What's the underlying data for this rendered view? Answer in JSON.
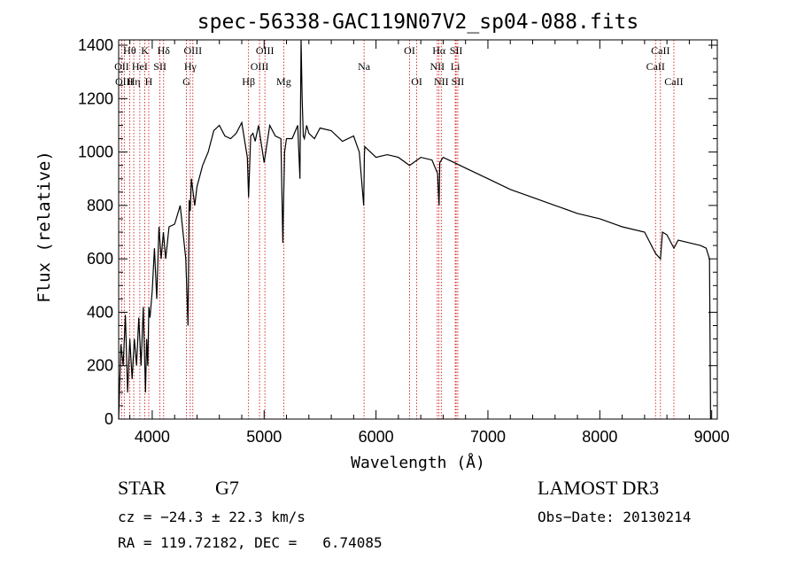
{
  "chart_data": {
    "type": "line",
    "title": "spec-56338-GAC119N07V2_sp04-088.fits",
    "xlabel": "Wavelength (Å)",
    "ylabel": "Flux (relative)",
    "xlim": [
      3700,
      9050
    ],
    "ylim": [
      0,
      1420
    ],
    "xticks": [
      4000,
      5000,
      6000,
      7000,
      8000,
      9000
    ],
    "yticks": [
      0,
      200,
      400,
      600,
      800,
      1000,
      1200,
      1400
    ],
    "grid": false,
    "series": [
      {
        "name": "spectrum",
        "x": [
          3700,
          3720,
          3740,
          3760,
          3780,
          3800,
          3820,
          3840,
          3860,
          3880,
          3900,
          3920,
          3940,
          3950,
          3960,
          3970,
          3980,
          4000,
          4020,
          4040,
          4060,
          4080,
          4100,
          4120,
          4150,
          4200,
          4250,
          4300,
          4320,
          4330,
          4340,
          4350,
          4380,
          4400,
          4450,
          4500,
          4550,
          4600,
          4650,
          4700,
          4750,
          4800,
          4850,
          4861,
          4880,
          4900,
          4920,
          4950,
          5000,
          5050,
          5100,
          5150,
          5167,
          5172,
          5183,
          5200,
          5250,
          5300,
          5320,
          5330,
          5340,
          5350,
          5360,
          5380,
          5400,
          5450,
          5500,
          5600,
          5700,
          5800,
          5850,
          5890,
          5896,
          5900,
          5950,
          6000,
          6100,
          6200,
          6300,
          6400,
          6500,
          6550,
          6563,
          6570,
          6600,
          6700,
          6800,
          6900,
          7000,
          7200,
          7400,
          7600,
          7800,
          8000,
          8200,
          8400,
          8498,
          8542,
          8560,
          8600,
          8662,
          8700,
          8800,
          8900,
          8950,
          8980,
          8990
        ],
        "values": [
          0,
          280,
          200,
          390,
          100,
          300,
          150,
          300,
          200,
          380,
          200,
          420,
          100,
          300,
          200,
          420,
          380,
          480,
          640,
          450,
          720,
          600,
          700,
          600,
          720,
          730,
          800,
          600,
          350,
          820,
          780,
          900,
          800,
          870,
          950,
          1000,
          1080,
          1100,
          1060,
          1050,
          1070,
          1110,
          980,
          830,
          1060,
          1070,
          1040,
          1100,
          960,
          1100,
          1060,
          1050,
          660,
          780,
          1000,
          1050,
          1050,
          1100,
          900,
          1420,
          1200,
          1060,
          1050,
          1100,
          1070,
          1050,
          1090,
          1080,
          1040,
          1060,
          1000,
          800,
          990,
          1020,
          1000,
          980,
          990,
          980,
          950,
          980,
          970,
          920,
          800,
          960,
          980,
          960,
          940,
          920,
          900,
          860,
          830,
          800,
          770,
          750,
          720,
          700,
          620,
          600,
          700,
          690,
          640,
          670,
          660,
          650,
          640,
          600,
          0
        ]
      }
    ],
    "lines": [
      {
        "name": "Hθ",
        "wave": 3798
      },
      {
        "name": "OII",
        "wave": 3727
      },
      {
        "name": "OIII",
        "wave": 3750
      },
      {
        "name": "K",
        "wave": 3934
      },
      {
        "name": "H",
        "wave": 3969
      },
      {
        "name": "HeI",
        "wave": 3889
      },
      {
        "name": "Hη",
        "wave": 3835
      },
      {
        "name": "SII",
        "wave": 4069
      },
      {
        "name": "Hδ",
        "wave": 4102
      },
      {
        "name": "OIII",
        "wave": 4363
      },
      {
        "name": "Hγ",
        "wave": 4340
      },
      {
        "name": "G",
        "wave": 4305
      },
      {
        "name": "Hβ",
        "wave": 4861
      },
      {
        "name": "OIII",
        "wave": 4959
      },
      {
        "name": "OIII",
        "wave": 5007
      },
      {
        "name": "Mg",
        "wave": 5175
      },
      {
        "name": "Na",
        "wave": 5893
      },
      {
        "name": "OI",
        "wave": 6300
      },
      {
        "name": "OI",
        "wave": 6364
      },
      {
        "name": "Hα",
        "wave": 6563
      },
      {
        "name": "NII",
        "wave": 6548
      },
      {
        "name": "NII",
        "wave": 6583
      },
      {
        "name": "SII",
        "wave": 6716
      },
      {
        "name": "Li",
        "wave": 6708
      },
      {
        "name": "SII",
        "wave": 6731
      },
      {
        "name": "CaII",
        "wave": 8498
      },
      {
        "name": "CaII",
        "wave": 8542
      },
      {
        "name": "CaII",
        "wave": 8662
      }
    ]
  },
  "labels": {
    "title": "spec-56338-GAC119N07V2_sp04-088.fits",
    "xlabel": "Wavelength (Å)",
    "ylabel": "Flux (relative)"
  },
  "info": {
    "class": "STAR",
    "subclass": "G7",
    "survey": "LAMOST DR3",
    "cz": "cz = −24.3 ± 22.3 km/s",
    "obs_date": "Obs−Date: 20130214",
    "coords": "RA = 119.72182, DEC =   6.74085"
  },
  "line_labels": [
    {
      "text": "Hθ",
      "wave": 3798,
      "row": 0
    },
    {
      "text": "K",
      "wave": 3934,
      "row": 0
    },
    {
      "text": "Hδ",
      "wave": 4102,
      "row": 0
    },
    {
      "text": "OIII",
      "wave": 4363,
      "row": 0
    },
    {
      "text": "OIII",
      "wave": 5007,
      "row": 0
    },
    {
      "text": "OI",
      "wave": 6300,
      "row": 0
    },
    {
      "text": "Hα",
      "wave": 6563,
      "row": 0
    },
    {
      "text": "SII",
      "wave": 6716,
      "row": 0
    },
    {
      "text": "CaII",
      "wave": 8542,
      "row": 0
    },
    {
      "text": "OII",
      "wave": 3727,
      "row": 1
    },
    {
      "text": "HeI",
      "wave": 3889,
      "row": 1
    },
    {
      "text": "SII",
      "wave": 4069,
      "row": 1
    },
    {
      "text": "Hγ",
      "wave": 4340,
      "row": 1
    },
    {
      "text": "OIII",
      "wave": 4959,
      "row": 1
    },
    {
      "text": "Na",
      "wave": 5893,
      "row": 1
    },
    {
      "text": "NII",
      "wave": 6548,
      "row": 1
    },
    {
      "text": "Li",
      "wave": 6708,
      "row": 1
    },
    {
      "text": "CaII",
      "wave": 8498,
      "row": 1
    },
    {
      "text": "OIII",
      "wave": 3750,
      "row": 2
    },
    {
      "text": "Hη",
      "wave": 3835,
      "row": 2
    },
    {
      "text": "H",
      "wave": 3969,
      "row": 2
    },
    {
      "text": "G",
      "wave": 4305,
      "row": 2
    },
    {
      "text": "Hβ",
      "wave": 4861,
      "row": 2
    },
    {
      "text": "Mg",
      "wave": 5175,
      "row": 2
    },
    {
      "text": "OI",
      "wave": 6364,
      "row": 2
    },
    {
      "text": "NII",
      "wave": 6583,
      "row": 2
    },
    {
      "text": "SII",
      "wave": 6731,
      "row": 2
    },
    {
      "text": "CaII",
      "wave": 8662,
      "row": 2
    }
  ]
}
